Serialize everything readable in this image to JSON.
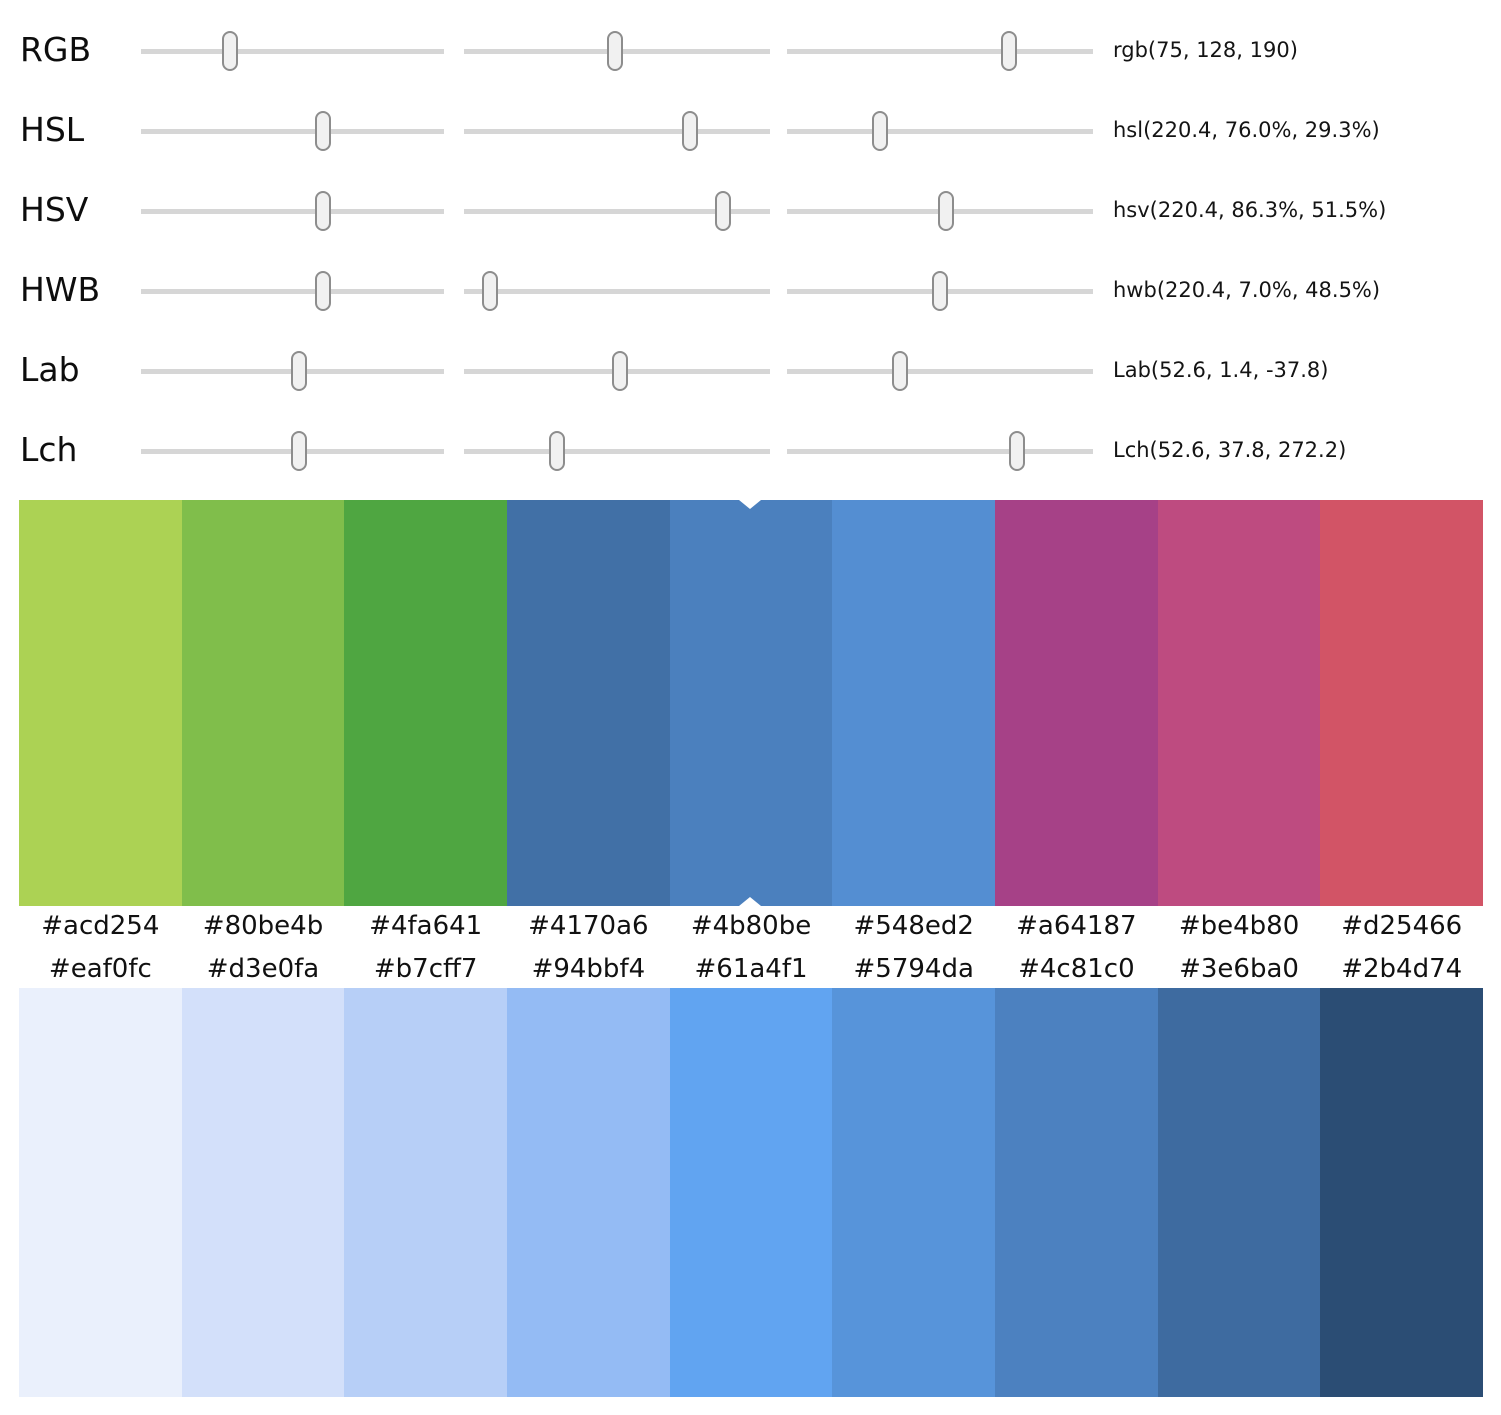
{
  "sliders": {
    "rows": [
      {
        "label": "RGB",
        "value": "rgb(75, 128, 190)",
        "thumbs": [
          29.5,
          49.5,
          72.5
        ]
      },
      {
        "label": "HSL",
        "value": "hsl(220.4, 76.0%, 29.3%)",
        "thumbs": [
          60.0,
          74.0,
          30.5
        ]
      },
      {
        "label": "HSV",
        "value": "hsv(220.4, 86.3%, 51.5%)",
        "thumbs": [
          60.0,
          84.5,
          52.0
        ]
      },
      {
        "label": "HWB",
        "value": "hwb(220.4, 7.0%, 48.5%)",
        "thumbs": [
          60.0,
          8.5,
          50.0
        ]
      },
      {
        "label": "Lab",
        "value": "Lab(52.6, 1.4, -37.8)",
        "thumbs": [
          52.0,
          51.0,
          37.0
        ]
      },
      {
        "label": "Lch",
        "value": "Lch(52.6, 37.8, 272.2)",
        "thumbs": [
          52.0,
          30.5,
          75.0
        ]
      }
    ]
  },
  "palettes": {
    "top": {
      "colors": [
        "#acd254",
        "#80be4b",
        "#4fa641",
        "#4170a6",
        "#4b80be",
        "#548ed2",
        "#a64187",
        "#be4b80",
        "#d25466"
      ],
      "selected_index": 4
    },
    "bottom": {
      "colors": [
        "#eaf0fc",
        "#d3e0fa",
        "#b7cff7",
        "#94bbf4",
        "#61a4f1",
        "#5794da",
        "#4c81c0",
        "#3e6ba0",
        "#2b4d74"
      ]
    }
  },
  "theme": {
    "track_color": "#d6d6d6",
    "thumb_fill": "#f1f1f1",
    "thumb_border": "#8d8d8d",
    "notch_color": "#ffffff",
    "background": "#ffffff"
  }
}
